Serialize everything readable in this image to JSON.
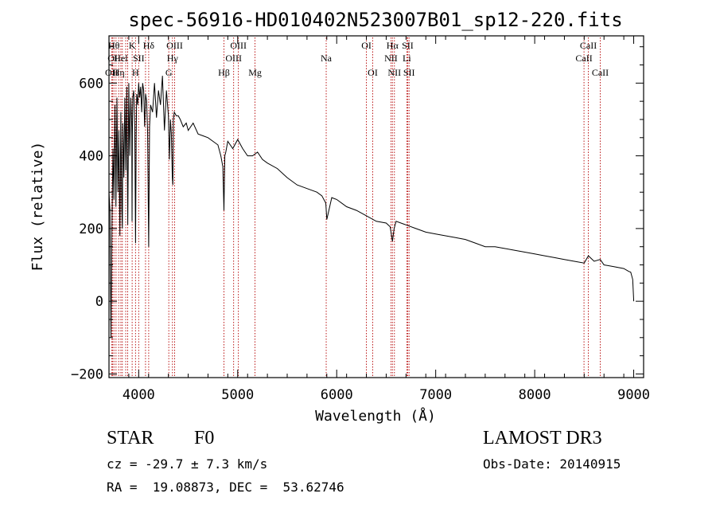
{
  "chart_data": {
    "type": "line",
    "title": "spec-56916-HD010402N523007B01_sp12-220.fits",
    "xlabel": "Wavelength (Å)",
    "ylabel": "Flux (relative)",
    "xlim": [
      3700,
      9100
    ],
    "ylim": [
      -210,
      730
    ],
    "x_ticks": [
      4000,
      5000,
      6000,
      7000,
      8000,
      9000
    ],
    "y_ticks": [
      -200,
      0,
      200,
      400,
      600
    ],
    "grid": false,
    "series": [
      {
        "name": "flux",
        "color": "#000000",
        "x": [
          3700,
          3710,
          3720,
          3730,
          3740,
          3750,
          3760,
          3770,
          3780,
          3790,
          3800,
          3810,
          3820,
          3830,
          3835,
          3840,
          3850,
          3860,
          3870,
          3880,
          3890,
          3900,
          3910,
          3920,
          3930,
          3933,
          3936,
          3940,
          3950,
          3960,
          3968,
          3975,
          3980,
          3990,
          4000,
          4010,
          4020,
          4030,
          4040,
          4050,
          4060,
          4070,
          4080,
          4090,
          4101,
          4110,
          4120,
          4140,
          4160,
          4180,
          4200,
          4220,
          4240,
          4260,
          4280,
          4300,
          4310,
          4320,
          4330,
          4340,
          4345,
          4350,
          4360,
          4380,
          4400,
          4420,
          4450,
          4480,
          4500,
          4550,
          4600,
          4650,
          4700,
          4750,
          4800,
          4830,
          4850,
          4861,
          4870,
          4880,
          4900,
          4950,
          5000,
          5050,
          5100,
          5150,
          5200,
          5250,
          5300,
          5400,
          5500,
          5600,
          5700,
          5800,
          5850,
          5890,
          5900,
          5950,
          6000,
          6100,
          6200,
          6300,
          6400,
          6500,
          6540,
          6563,
          6580,
          6600,
          6700,
          6800,
          6900,
          7000,
          7100,
          7200,
          7300,
          7400,
          7500,
          7600,
          7700,
          7800,
          7900,
          8000,
          8100,
          8200,
          8300,
          8400,
          8500,
          8542,
          8600,
          8662,
          8700,
          8800,
          8900,
          8950,
          8970,
          8990,
          9000
        ],
        "y": [
          300,
          250,
          -100,
          200,
          420,
          280,
          540,
          260,
          560,
          300,
          470,
          180,
          520,
          250,
          200,
          490,
          340,
          560,
          360,
          590,
          210,
          600,
          400,
          560,
          480,
          220,
          460,
          560,
          580,
          480,
          160,
          450,
          570,
          540,
          600,
          560,
          590,
          520,
          600,
          580,
          480,
          570,
          550,
          470,
          150,
          480,
          540,
          520,
          600,
          505,
          580,
          540,
          620,
          470,
          580,
          510,
          390,
          500,
          460,
          340,
          320,
          500,
          520,
          510,
          510,
          500,
          480,
          490,
          470,
          490,
          460,
          455,
          450,
          440,
          430,
          400,
          370,
          250,
          400,
          410,
          440,
          420,
          445,
          420,
          400,
          400,
          410,
          390,
          380,
          365,
          340,
          320,
          310,
          300,
          290,
          270,
          225,
          285,
          280,
          260,
          250,
          235,
          220,
          215,
          205,
          165,
          200,
          220,
          210,
          200,
          190,
          185,
          180,
          175,
          170,
          160,
          150,
          150,
          145,
          140,
          135,
          130,
          125,
          120,
          115,
          110,
          105,
          125,
          110,
          115,
          100,
          95,
          90,
          82,
          80,
          60,
          0
        ]
      }
    ],
    "line_markers": [
      {
        "wavelength": 3727,
        "label": "OII",
        "row": 3
      },
      {
        "wavelength": 3737,
        "label": "OI",
        "row": 2
      },
      {
        "wavelength": 3750,
        "label": "Hθ",
        "row": 1
      },
      {
        "wavelength": 3771,
        "label": "",
        "row": 0
      },
      {
        "wavelength": 3798,
        "label": "Hη",
        "row": 3
      },
      {
        "wavelength": 3820,
        "label": "Hel",
        "row": 2
      },
      {
        "wavelength": 3835,
        "label": "",
        "row": 0
      },
      {
        "wavelength": 3869,
        "label": "",
        "row": 0
      },
      {
        "wavelength": 3889,
        "label": "",
        "row": 0
      },
      {
        "wavelength": 3934,
        "label": "K",
        "row": 1
      },
      {
        "wavelength": 3968,
        "label": "H",
        "row": 3
      },
      {
        "wavelength": 4000,
        "label": "SII",
        "row": 2
      },
      {
        "wavelength": 4069,
        "label": "",
        "row": 0
      },
      {
        "wavelength": 4101,
        "label": "Hδ",
        "row": 1
      },
      {
        "wavelength": 4304,
        "label": "G",
        "row": 3
      },
      {
        "wavelength": 4341,
        "label": "Hγ",
        "row": 2
      },
      {
        "wavelength": 4363,
        "label": "OIII",
        "row": 1
      },
      {
        "wavelength": 4861,
        "label": "Hβ",
        "row": 3
      },
      {
        "wavelength": 4959,
        "label": "OIII",
        "row": 2
      },
      {
        "wavelength": 5007,
        "label": "OIII",
        "row": 1
      },
      {
        "wavelength": 5175,
        "label": "Mg",
        "row": 3
      },
      {
        "wavelength": 5894,
        "label": "Na",
        "row": 2
      },
      {
        "wavelength": 6300,
        "label": "OI",
        "row": 1
      },
      {
        "wavelength": 6364,
        "label": "OI",
        "row": 3
      },
      {
        "wavelength": 6548,
        "label": "NII",
        "row": 2
      },
      {
        "wavelength": 6563,
        "label": "Hα",
        "row": 1
      },
      {
        "wavelength": 6583,
        "label": "NII",
        "row": 3
      },
      {
        "wavelength": 6708,
        "label": "Li",
        "row": 2
      },
      {
        "wavelength": 6717,
        "label": "SII",
        "row": 1
      },
      {
        "wavelength": 6731,
        "label": "SII",
        "row": 3
      },
      {
        "wavelength": 8498,
        "label": "CaII",
        "row": 2
      },
      {
        "wavelength": 8542,
        "label": "CaII",
        "row": 1
      },
      {
        "wavelength": 8662,
        "label": "CaII",
        "row": 3
      }
    ]
  },
  "info": {
    "object_class": "STAR",
    "subclass": "F0",
    "survey": "LAMOST DR3",
    "redshift": "cz = -29.7 ± 7.3 km/s",
    "obs_date": "Obs-Date: 20140915",
    "coords": "RA =  19.08873, DEC =  53.62746"
  },
  "colors": {
    "spectrum": "#000000",
    "line_marker": "#b40000",
    "frame": "#000000",
    "background": "#ffffff"
  }
}
